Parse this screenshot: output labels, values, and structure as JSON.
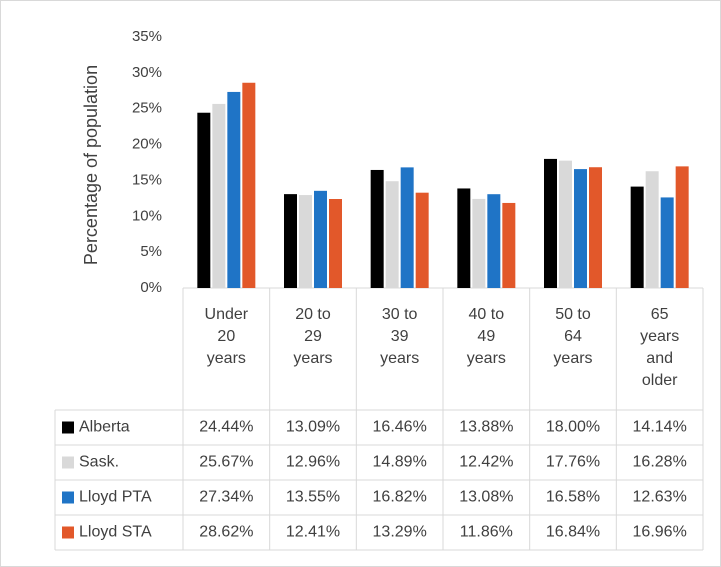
{
  "chart_data": {
    "type": "bar",
    "ylabel": "Percentage of population",
    "categories": [
      "Under 20 years",
      "20 to 29 years",
      "30 to 39 years",
      "40 to 49 years",
      "50 to 64 years",
      "65 years and older"
    ],
    "series": [
      {
        "name": "Alberta",
        "color": "#000000",
        "values": [
          24.44,
          13.09,
          16.46,
          13.88,
          18,
          14.14
        ],
        "value_labels": [
          "24.44%",
          "13.09%",
          "16.46%",
          "13.88%",
          "18.00%",
          "14.14%"
        ]
      },
      {
        "name": "Sask.",
        "color": "#d9d9d9",
        "values": [
          25.67,
          12.96,
          14.89,
          12.42,
          17.76,
          16.28
        ],
        "value_labels": [
          "25.67%",
          "12.96%",
          "14.89%",
          "12.42%",
          "17.76%",
          "16.28%"
        ]
      },
      {
        "name": "Lloyd PTA",
        "color": "#1f74c6",
        "values": [
          27.34,
          13.55,
          16.82,
          13.08,
          16.58,
          12.63
        ],
        "value_labels": [
          "27.34%",
          "13.55%",
          "16.82%",
          "13.08%",
          "16.58%",
          "12.63%"
        ]
      },
      {
        "name": "Lloyd STA",
        "color": "#e2582a",
        "values": [
          28.62,
          12.41,
          13.29,
          11.86,
          16.84,
          16.96
        ],
        "value_labels": [
          "28.62%",
          "12.41%",
          "13.29%",
          "11.86%",
          "16.84%",
          "16.96%"
        ]
      }
    ],
    "ylim": [
      0,
      35
    ],
    "yticks": [
      {
        "value": 0,
        "label": "0%"
      },
      {
        "value": 5,
        "label": "5%"
      },
      {
        "value": 10,
        "label": "10%"
      },
      {
        "value": 15,
        "label": "15%"
      },
      {
        "value": 20,
        "label": "20%"
      },
      {
        "value": 25,
        "label": "25%"
      },
      {
        "value": 30,
        "label": "30%"
      },
      {
        "value": 35,
        "label": "35%"
      }
    ]
  }
}
